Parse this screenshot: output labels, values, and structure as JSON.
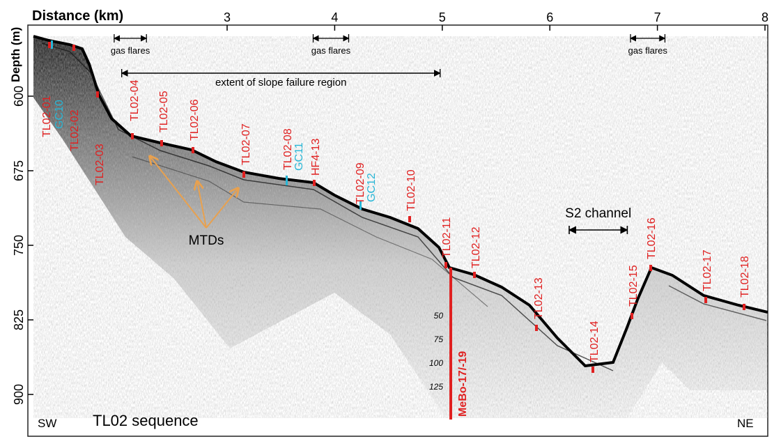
{
  "figure": {
    "x_axis_title": "Distance (km)",
    "y_axis_title": "Depth (m)",
    "sequence_label": "TL02 sequence",
    "direction_left": "SW",
    "direction_right": "NE",
    "x_ticks": [
      {
        "label": "3",
        "km": 3
      },
      {
        "label": "4",
        "km": 4
      },
      {
        "label": "5",
        "km": 5
      },
      {
        "label": "6",
        "km": 6
      },
      {
        "label": "7",
        "km": 7
      },
      {
        "label": "8",
        "km": 8
      }
    ],
    "y_ticks": [
      {
        "label": "600",
        "m": 600
      },
      {
        "label": "675",
        "m": 675
      },
      {
        "label": "750",
        "m": 750
      },
      {
        "label": "825",
        "m": 825
      },
      {
        "label": "900",
        "m": 900
      }
    ],
    "gas_flares": [
      {
        "label": "gas flares",
        "from_km": 1.95,
        "to_km": 2.25
      },
      {
        "label": "gas flares",
        "from_km": 3.8,
        "to_km": 4.13
      },
      {
        "label": "gas flares",
        "from_km": 6.75,
        "to_km": 7.07
      }
    ],
    "slope_failure": {
      "label": "extent of slope failure region",
      "from_km": 2.02,
      "to_km": 4.98
    },
    "s2_channel": {
      "label": "S2 channel",
      "from_km": 6.18,
      "to_km": 6.72
    },
    "mtd_label": "MTDs",
    "core_labels_red": [
      "TL02-01",
      "TL02-02",
      "TL02-03",
      "TL02-04",
      "TL02-05",
      "TL02-06",
      "TL02-07",
      "TL02-08",
      "HF4-13",
      "TL02-09",
      "TL02-10",
      "TL02-11",
      "TL02-12",
      "TL02-13",
      "TL02-14",
      "TL02-15",
      "TL02-16",
      "TL02-17",
      "TL02-18"
    ],
    "core_labels_cyan": [
      "GC10",
      "GC11",
      "GC12"
    ],
    "mebo": {
      "label": "MeBo-17/-19",
      "depth_ticks": [
        "50",
        "75",
        "100",
        "125"
      ]
    }
  }
}
